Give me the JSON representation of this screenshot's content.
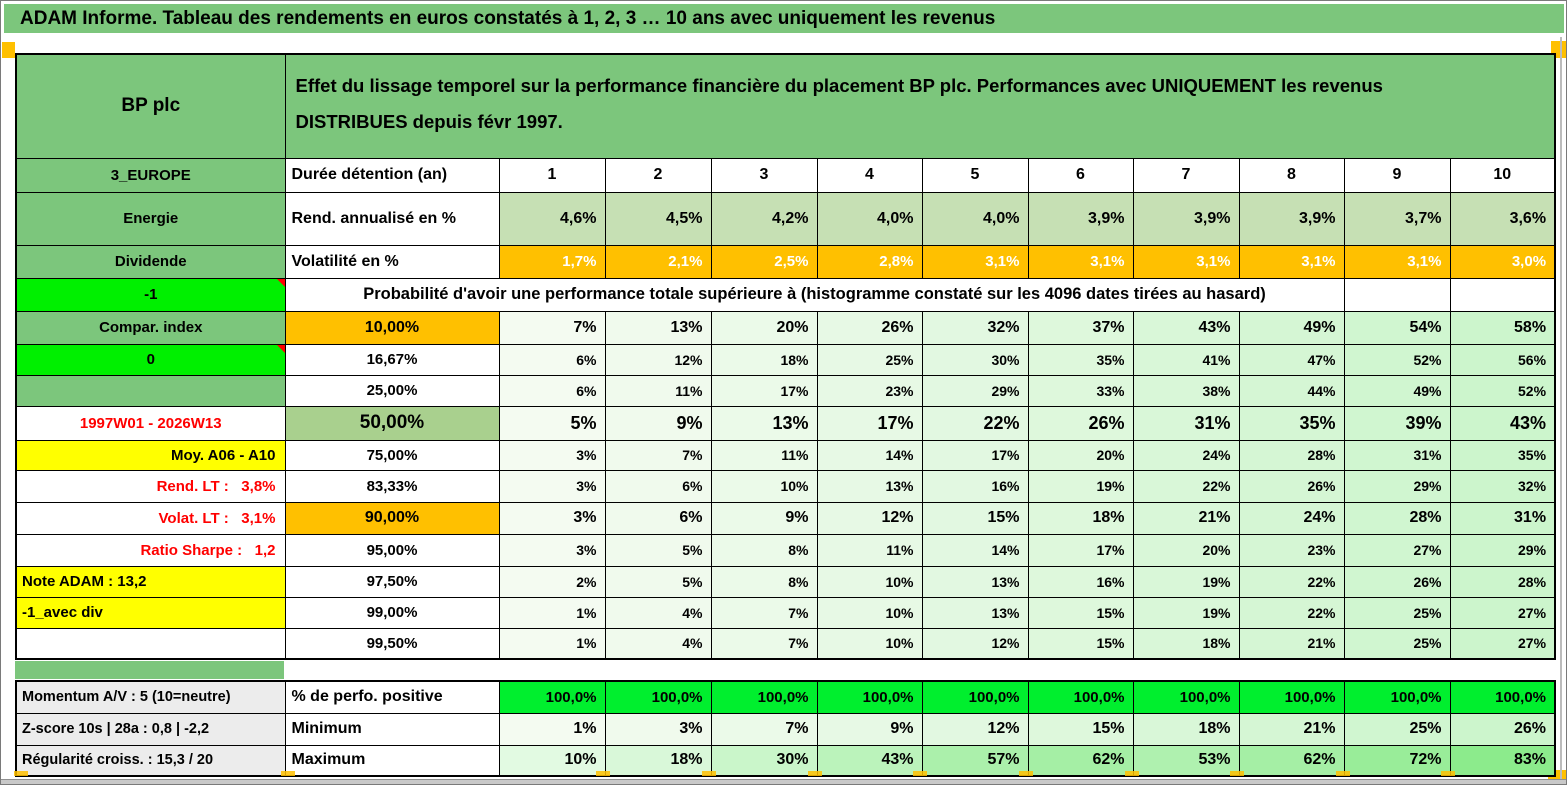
{
  "palette": {
    "header_green": "#7cc67c",
    "light_green": "#c6e0b4",
    "mid_green": "#a9d08e",
    "lime": "#00f000",
    "lime_cell": "#00ef2e",
    "orange": "#ffc000",
    "yellow": "#ffff00",
    "red_text": "#ff0000",
    "gradient_start": "#f4fbf1",
    "gradient_end": "#ccf5cc",
    "max_scale_end": "#8ceb8c"
  },
  "banner": "ADAM Informe. Tableau des rendements en euros constatés à 1, 2, 3 … 10 ans avec uniquement les revenus",
  "header": {
    "company": "BP plc",
    "line1": "Effet du lissage temporel sur la performance financière du placement BP plc. Performances avec UNIQUEMENT les revenus",
    "line2": "DISTRIBUES depuis févr 1997."
  },
  "left_column": [
    {
      "label": "3_EUROPE",
      "style": "green"
    },
    {
      "label": "Energie",
      "style": "green"
    },
    {
      "label": "Dividende",
      "style": "green"
    },
    {
      "label": "-1",
      "style": "lime",
      "comment": true
    },
    {
      "label": "Compar. index",
      "style": "green"
    },
    {
      "label": "0",
      "style": "lime",
      "comment": true
    },
    {
      "label": "",
      "style": "green"
    },
    {
      "label": "1997W01 - 2026W13",
      "style": "red-center"
    },
    {
      "label": "Moy. A06 - A10",
      "style": "yellow-right"
    },
    {
      "label": "Rend. LT :   3,8%",
      "style": "red-right"
    },
    {
      "label": "Volat. LT :   3,1%",
      "style": "red-right"
    },
    {
      "label": "Ratio Sharpe :   1,2",
      "style": "red-right"
    },
    {
      "label": "Note ADAM : 13,2",
      "style": "yellow-left"
    },
    {
      "label": "-1_avec div",
      "style": "yellow-left"
    },
    {
      "label": "",
      "style": "white"
    }
  ],
  "bottom_left": [
    "Momentum A/V : 5 (10=neutre)",
    "Z-score 10s | 28a : 0,8 | -2,2",
    "Régularité croiss. : 15,3 / 20"
  ],
  "table": {
    "duration_label": "Durée détention (an)",
    "durations": [
      "1",
      "2",
      "3",
      "4",
      "5",
      "6",
      "7",
      "8",
      "9",
      "10"
    ],
    "annualized_return": {
      "label": "Rend. annualisé en %",
      "values": [
        "4,6%",
        "4,5%",
        "4,2%",
        "4,0%",
        "4,0%",
        "3,9%",
        "3,9%",
        "3,9%",
        "3,7%",
        "3,6%"
      ]
    },
    "volatility": {
      "label": "Volatilité en %",
      "values": [
        "1,7%",
        "2,1%",
        "2,5%",
        "2,8%",
        "3,1%",
        "3,1%",
        "3,1%",
        "3,1%",
        "3,1%",
        "3,0%"
      ]
    },
    "probability_note": "Probabilité d'avoir une performance totale supérieure à (histogramme constaté sur les 4096 dates tirées au hasard)",
    "percentile_rows": [
      {
        "label": "10,00%",
        "highlight": "orange",
        "values": [
          "7%",
          "13%",
          "20%",
          "26%",
          "32%",
          "37%",
          "43%",
          "49%",
          "54%",
          "58%"
        ]
      },
      {
        "label": "16,67%",
        "highlight": "",
        "values": [
          "6%",
          "12%",
          "18%",
          "25%",
          "30%",
          "35%",
          "41%",
          "47%",
          "52%",
          "56%"
        ]
      },
      {
        "label": "25,00%",
        "highlight": "",
        "values": [
          "6%",
          "11%",
          "17%",
          "23%",
          "29%",
          "33%",
          "38%",
          "44%",
          "49%",
          "52%"
        ]
      },
      {
        "label": "50,00%",
        "highlight": "green",
        "values": [
          "5%",
          "9%",
          "13%",
          "17%",
          "22%",
          "26%",
          "31%",
          "35%",
          "39%",
          "43%"
        ]
      },
      {
        "label": "75,00%",
        "highlight": "",
        "values": [
          "3%",
          "7%",
          "11%",
          "14%",
          "17%",
          "20%",
          "24%",
          "28%",
          "31%",
          "35%"
        ]
      },
      {
        "label": "83,33%",
        "highlight": "",
        "values": [
          "3%",
          "6%",
          "10%",
          "13%",
          "16%",
          "19%",
          "22%",
          "26%",
          "29%",
          "32%"
        ]
      },
      {
        "label": "90,00%",
        "highlight": "orange",
        "values": [
          "3%",
          "6%",
          "9%",
          "12%",
          "15%",
          "18%",
          "21%",
          "24%",
          "28%",
          "31%"
        ]
      },
      {
        "label": "95,00%",
        "highlight": "",
        "values": [
          "3%",
          "5%",
          "8%",
          "11%",
          "14%",
          "17%",
          "20%",
          "23%",
          "27%",
          "29%"
        ]
      },
      {
        "label": "97,50%",
        "highlight": "",
        "values": [
          "2%",
          "5%",
          "8%",
          "10%",
          "13%",
          "16%",
          "19%",
          "22%",
          "26%",
          "28%"
        ]
      },
      {
        "label": "99,00%",
        "highlight": "",
        "values": [
          "1%",
          "4%",
          "7%",
          "10%",
          "13%",
          "15%",
          "19%",
          "22%",
          "25%",
          "27%"
        ]
      },
      {
        "label": "99,50%",
        "highlight": "",
        "values": [
          "1%",
          "4%",
          "7%",
          "10%",
          "12%",
          "15%",
          "18%",
          "21%",
          "25%",
          "27%"
        ]
      }
    ],
    "positive_perf": {
      "label": "% de perfo. positive",
      "values": [
        "100,0%",
        "100,0%",
        "100,0%",
        "100,0%",
        "100,0%",
        "100,0%",
        "100,0%",
        "100,0%",
        "100,0%",
        "100,0%"
      ]
    },
    "minimum": {
      "label": "Minimum",
      "values": [
        "1%",
        "3%",
        "7%",
        "9%",
        "12%",
        "15%",
        "18%",
        "21%",
        "25%",
        "26%"
      ]
    },
    "maximum": {
      "label": "Maximum",
      "values": [
        "10%",
        "18%",
        "30%",
        "43%",
        "57%",
        "62%",
        "53%",
        "62%",
        "72%",
        "83%"
      ]
    }
  }
}
